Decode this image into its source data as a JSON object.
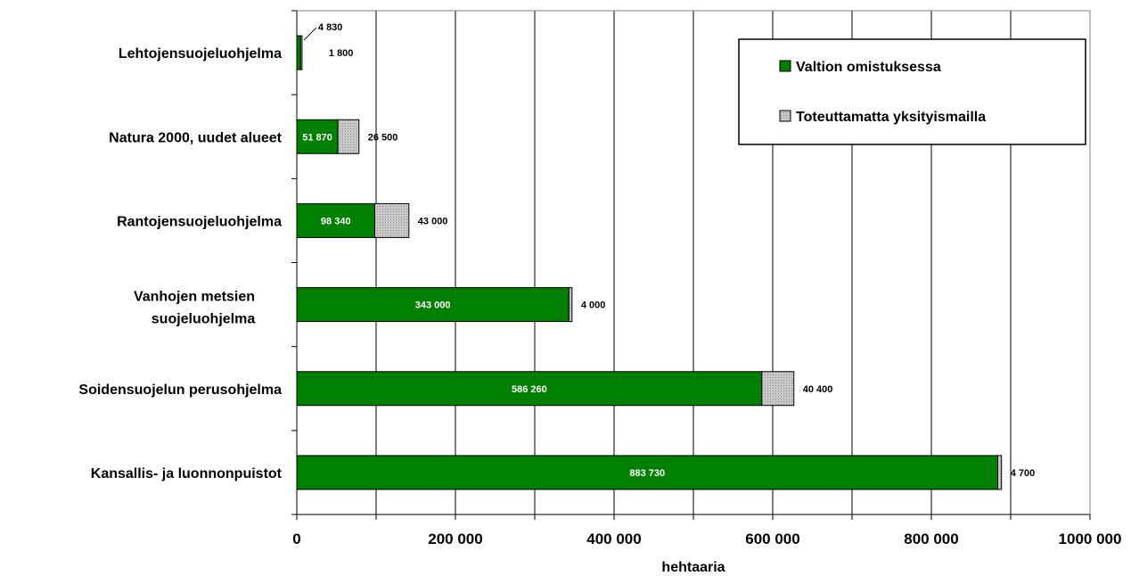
{
  "chart_data": {
    "type": "bar",
    "orientation": "horizontal",
    "stacked": true,
    "categories": [
      "Lehtojensuojeluohjelma",
      "Natura 2000, uudet alueet",
      "Rantojensuojeluohjelma",
      "Vanhojen metsien",
      "Soidensuojelun perusohjelma",
      "Kansallis- ja luonnonpuistot"
    ],
    "category_second_lines": [
      "",
      "",
      "",
      "suojeluohjelma",
      "",
      ""
    ],
    "series": [
      {
        "name": "Valtion omistuksessa",
        "color": "#008000",
        "values": [
          4830,
          51870,
          98340,
          343000,
          586260,
          883730
        ],
        "labels": [
          "4 830",
          "51 870",
          "98 340",
          "343 000",
          "586 260",
          "883 730"
        ]
      },
      {
        "name": "Toteuttamatta yksityismailla",
        "color": "#c0c0c0",
        "values": [
          1800,
          26500,
          43000,
          4000,
          40400,
          4700
        ],
        "labels": [
          "1 800",
          "26 500",
          "43 000",
          "4 000",
          "40 400",
          "4 700"
        ]
      }
    ],
    "xlim": [
      0,
      1000000
    ],
    "xticks": [
      0,
      200000,
      400000,
      600000,
      800000,
      1000000
    ],
    "xtick_labels": [
      "0",
      "200 000",
      "400 000",
      "600 000",
      "800 000",
      "1000 000"
    ],
    "xlabel": "hehtaaria",
    "ylabel": "",
    "title": "",
    "grid": "vertical",
    "legend_position": "top-right"
  }
}
